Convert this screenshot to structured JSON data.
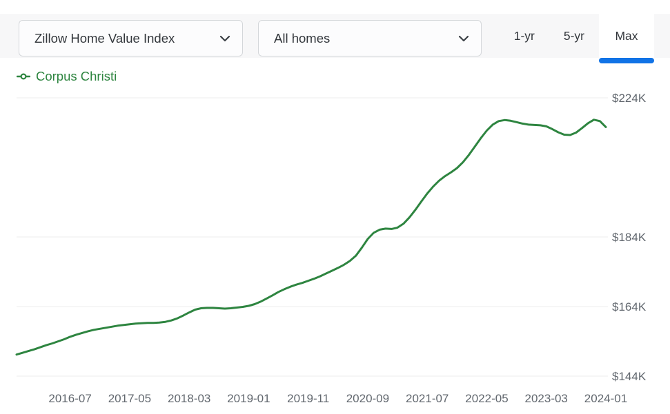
{
  "toolbar": {
    "metric_dropdown": {
      "value": "Zillow Home Value Index"
    },
    "home_type_dropdown": {
      "value": "All homes"
    },
    "range_tabs": [
      {
        "label": "1-yr",
        "active": false
      },
      {
        "label": "5-yr",
        "active": false
      },
      {
        "label": "Max",
        "active": true
      }
    ]
  },
  "legend": {
    "series_label": "Corpus Christi"
  },
  "colors": {
    "accent_blue": "#1173e6",
    "series_green": "#2e8540",
    "axis_text": "#61676e",
    "grid_line": "#ededee",
    "toolbar_bg": "#f7f7f8"
  },
  "chart_data": {
    "type": "line",
    "unit": "USD thousands",
    "legend_position": "top-left",
    "grid": "horizontal",
    "ylim": [
      144,
      224
    ],
    "yticks": [
      {
        "value": 224,
        "label": "$224K"
      },
      {
        "value": 184,
        "label": "$184K"
      },
      {
        "value": 164,
        "label": "$164K"
      },
      {
        "value": 144,
        "label": "$144K"
      }
    ],
    "xticks": [
      "2016-07",
      "2017-05",
      "2018-03",
      "2019-01",
      "2019-11",
      "2020-09",
      "2021-07",
      "2022-05",
      "2023-03",
      "2024-01"
    ],
    "x": [
      "2015-10",
      "2015-11",
      "2015-12",
      "2016-01",
      "2016-02",
      "2016-03",
      "2016-04",
      "2016-05",
      "2016-06",
      "2016-07",
      "2016-08",
      "2016-09",
      "2016-10",
      "2016-11",
      "2016-12",
      "2017-01",
      "2017-02",
      "2017-03",
      "2017-04",
      "2017-05",
      "2017-06",
      "2017-07",
      "2017-08",
      "2017-09",
      "2017-10",
      "2017-11",
      "2017-12",
      "2018-01",
      "2018-02",
      "2018-03",
      "2018-04",
      "2018-05",
      "2018-06",
      "2018-07",
      "2018-08",
      "2018-09",
      "2018-10",
      "2018-11",
      "2018-12",
      "2019-01",
      "2019-02",
      "2019-03",
      "2019-04",
      "2019-05",
      "2019-06",
      "2019-07",
      "2019-08",
      "2019-09",
      "2019-10",
      "2019-11",
      "2019-12",
      "2020-01",
      "2020-02",
      "2020-03",
      "2020-04",
      "2020-05",
      "2020-06",
      "2020-07",
      "2020-08",
      "2020-09",
      "2020-10",
      "2020-11",
      "2020-12",
      "2021-01",
      "2021-02",
      "2021-03",
      "2021-04",
      "2021-05",
      "2021-06",
      "2021-07",
      "2021-08",
      "2021-09",
      "2021-10",
      "2021-11",
      "2021-12",
      "2022-01",
      "2022-02",
      "2022-03",
      "2022-04",
      "2022-05",
      "2022-06",
      "2022-07",
      "2022-08",
      "2022-09",
      "2022-10",
      "2022-11",
      "2022-12",
      "2023-01",
      "2023-02",
      "2023-03",
      "2023-04",
      "2023-05",
      "2023-06",
      "2023-07",
      "2023-08",
      "2023-09",
      "2023-10",
      "2023-11",
      "2023-12",
      "2024-01"
    ],
    "series": [
      {
        "name": "Corpus Christi",
        "values": [
          150.2,
          150.7,
          151.2,
          151.7,
          152.3,
          152.9,
          153.4,
          154.0,
          154.6,
          155.3,
          155.9,
          156.4,
          156.9,
          157.3,
          157.6,
          157.9,
          158.2,
          158.5,
          158.7,
          158.9,
          159.1,
          159.2,
          159.3,
          159.3,
          159.4,
          159.6,
          160.0,
          160.6,
          161.4,
          162.3,
          163.1,
          163.5,
          163.6,
          163.6,
          163.5,
          163.4,
          163.5,
          163.7,
          163.9,
          164.2,
          164.7,
          165.4,
          166.3,
          167.2,
          168.2,
          169.0,
          169.7,
          170.3,
          170.8,
          171.4,
          172.0,
          172.7,
          173.5,
          174.3,
          175.1,
          176.0,
          177.1,
          178.6,
          180.9,
          183.4,
          185.2,
          186.1,
          186.4,
          186.3,
          186.7,
          187.8,
          189.6,
          191.8,
          194.2,
          196.5,
          198.5,
          200.2,
          201.5,
          202.6,
          203.8,
          205.5,
          207.6,
          210.0,
          212.4,
          214.6,
          216.3,
          217.3,
          217.6,
          217.4,
          217.0,
          216.6,
          216.3,
          216.2,
          216.1,
          215.8,
          215.0,
          214.1,
          213.4,
          213.3,
          214.0,
          215.3,
          216.7,
          217.7,
          217.3,
          215.6
        ]
      }
    ]
  }
}
